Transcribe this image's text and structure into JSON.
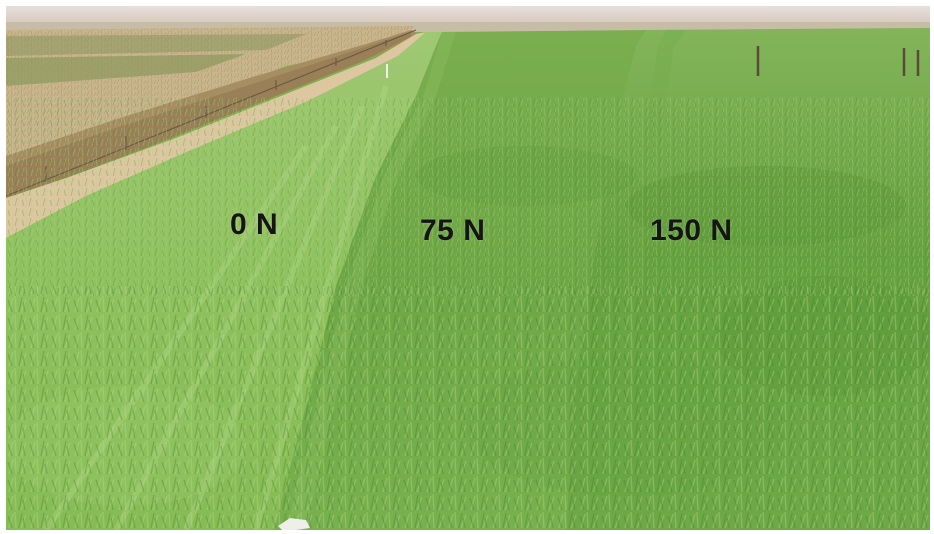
{
  "plots": [
    {
      "label": "0 N",
      "color": "#8ec15a"
    },
    {
      "label": "75 N",
      "color": "#6fa844"
    },
    {
      "label": "150 N",
      "color": "#62a03c"
    }
  ],
  "scene": {
    "sky_color": "#d8d2cc",
    "dry_field_color": "#c9b48a",
    "road_color": "#d9c49a"
  }
}
